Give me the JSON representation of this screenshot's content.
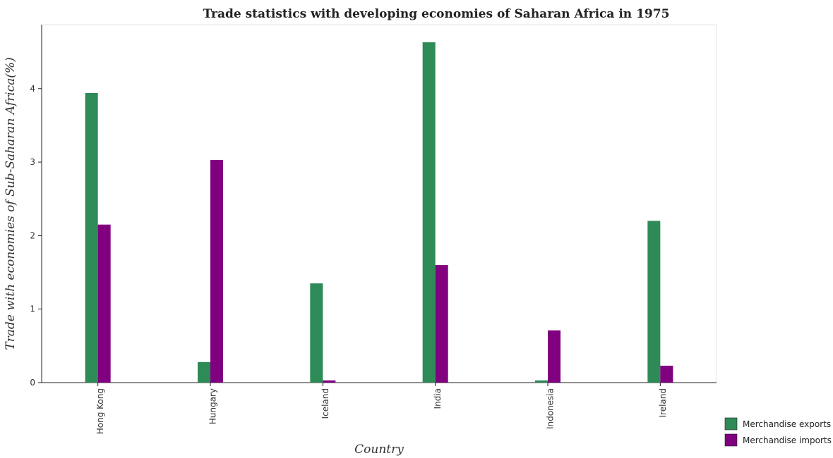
{
  "chart_data": {
    "type": "bar",
    "title": "Trade statistics with developing economies of Saharan Africa in 1975",
    "xlabel": "Country",
    "ylabel": "Trade with economies of Sub-Saharan Africa(%)",
    "categories": [
      "Hong Kong",
      "Hungary",
      "Iceland",
      "India",
      "Indonesia",
      "Ireland"
    ],
    "series": [
      {
        "name": "Merchandise exports",
        "color": "#2e8b57",
        "values": [
          3.94,
          0.28,
          1.35,
          4.63,
          0.03,
          2.2
        ]
      },
      {
        "name": "Merchandise imports",
        "color": "#800080",
        "values": [
          2.15,
          3.03,
          0.03,
          1.6,
          0.71,
          0.23
        ]
      }
    ],
    "yticks": [
      "0",
      "1",
      "2",
      "3",
      "4"
    ],
    "ylim": [
      0,
      4.87
    ],
    "grid": false,
    "legend_position": "bottom-right"
  }
}
